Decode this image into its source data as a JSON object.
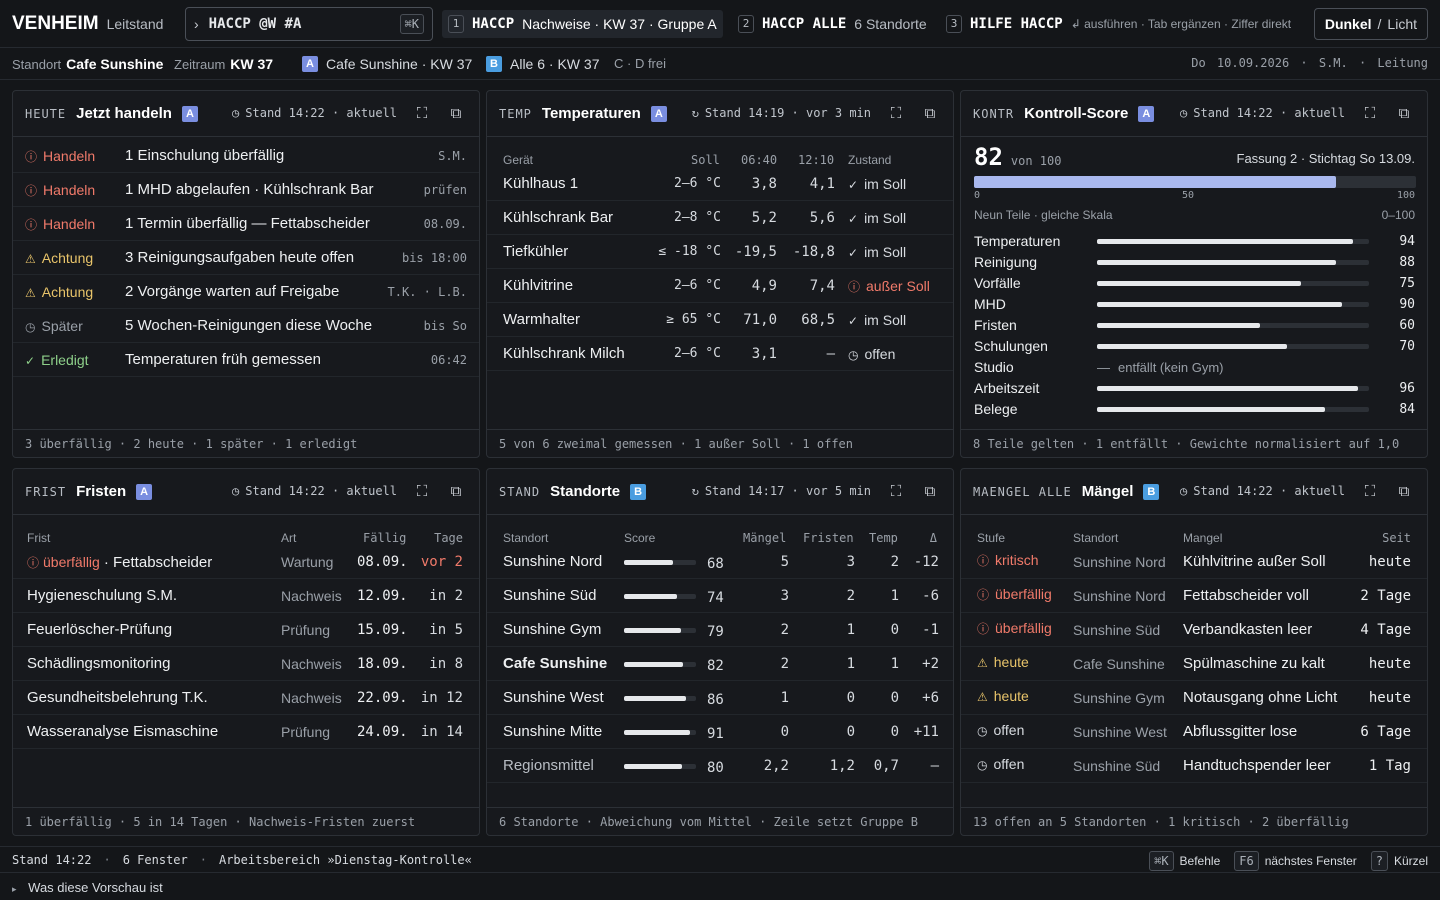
{
  "topbar": {
    "brand": "VENHEIM",
    "brand_sub": "Leitstand",
    "command": "HACCP @W #A",
    "command_kbd": "⌘K",
    "suggestions": [
      {
        "num": "1",
        "key": "HACCP",
        "text": "Nachweise · KW 37 · Gruppe A"
      },
      {
        "num": "2",
        "key": "HACCP ALLE",
        "text": "6 Standorte"
      },
      {
        "num": "3",
        "key": "HILFE HACCP",
        "text": "↲ ausführen · Tab ergänzen · Ziffer direkt"
      }
    ],
    "theme_dark": "Dunkel",
    "theme_sep": "/",
    "theme_light": "Licht"
  },
  "context": {
    "standort_label": "Standort",
    "standort_value": "Cafe Sunshine",
    "zeitraum_label": "Zeitraum",
    "zeitraum_value": "KW 37",
    "group_a_badge": "A",
    "group_a_text": "Cafe Sunshine · KW 37",
    "group_b_badge": "B",
    "group_b_text": "Alle 6 · KW 37",
    "free_text": "C · D frei",
    "date_user": "Do 10.09.2026 · S.M. · Leitung"
  },
  "panels": {
    "heute": {
      "tag": "HEUTE",
      "title": "Jetzt handeln",
      "badge": "A",
      "stand": "Stand 14:22 · aktuell",
      "rows": [
        {
          "status": "Handeln",
          "level": "red",
          "icon": "alert-circle-icon",
          "text": "1 Einschulung überfällig",
          "meta": "S.M."
        },
        {
          "status": "Handeln",
          "level": "red",
          "icon": "alert-circle-icon",
          "text": "1 MHD abgelaufen · Kühlschrank Bar",
          "meta": "prüfen"
        },
        {
          "status": "Handeln",
          "level": "red",
          "icon": "alert-circle-icon",
          "text": "1 Termin überfällig — Fettabscheider",
          "meta": "08.09."
        },
        {
          "status": "Achtung",
          "level": "yel",
          "icon": "warning-triangle-icon",
          "text": "3 Reinigungsaufgaben heute offen",
          "meta": "bis 18:00"
        },
        {
          "status": "Achtung",
          "level": "yel",
          "icon": "warning-triangle-icon",
          "text": "2 Vorgänge warten auf Freigabe",
          "meta": "T.K. · L.B."
        },
        {
          "status": "Später",
          "level": "muted",
          "icon": "clock-icon",
          "text": "5 Wochen-Reinigungen diese Woche",
          "meta": "bis So"
        },
        {
          "status": "Erledigt",
          "level": "grn",
          "icon": "check-circle-icon",
          "text": "Temperaturen früh gemessen",
          "meta": "06:42"
        }
      ],
      "footer": "3 überfällig · 2 heute · 1 später · 1 erledigt"
    },
    "temp": {
      "tag": "TEMP",
      "title": "Temperaturen",
      "badge": "A",
      "stand": "Stand 14:19 · vor 3 min",
      "headers": [
        "Gerät",
        "Soll",
        "06:40",
        "12:10",
        "Zustand"
      ],
      "rows": [
        {
          "device": "Kühlhaus 1",
          "soll": "2–6 °C",
          "t1": "3,8",
          "t2": "4,1",
          "state": "im Soll",
          "level": "ok",
          "icon": "check-icon"
        },
        {
          "device": "Kühlschrank Bar",
          "soll": "2–8 °C",
          "t1": "5,2",
          "t2": "5,6",
          "state": "im Soll",
          "level": "ok",
          "icon": "check-icon"
        },
        {
          "device": "Tiefkühler",
          "soll": "≤ -18 °C",
          "t1": "-19,5",
          "t2": "-18,8",
          "state": "im Soll",
          "level": "ok",
          "icon": "check-icon"
        },
        {
          "device": "Kühlvitrine",
          "soll": "2–6 °C",
          "t1": "4,9",
          "t2": "7,4",
          "state": "außer Soll",
          "level": "red",
          "icon": "alert-circle-icon"
        },
        {
          "device": "Warmhalter",
          "soll": "≥ 65 °C",
          "t1": "71,0",
          "t2": "68,5",
          "state": "im Soll",
          "level": "ok",
          "icon": "check-icon"
        },
        {
          "device": "Kühlschrank Milch",
          "soll": "2–6 °C",
          "t1": "3,1",
          "t2": "—",
          "state": "offen",
          "level": "ok",
          "icon": "clock-icon"
        }
      ],
      "footer": "5 von 6 zweimal gemessen · 1 außer Soll · 1 offen"
    },
    "kontr": {
      "tag": "KONTR",
      "title": "Kontroll-Score",
      "badge": "A",
      "stand": "Stand 14:22 · aktuell",
      "score": "82",
      "score_of": "von 100",
      "fassung": "Fassung 2 · Stichtag So 13.09.",
      "score_fraction": 0.82,
      "scale_ticks": [
        "0",
        "50",
        "100"
      ],
      "subhead": "Neun Teile · gleiche Skala",
      "subhead_range": "0–100",
      "items": [
        {
          "label": "Temperaturen",
          "value": 94
        },
        {
          "label": "Reinigung",
          "value": 88
        },
        {
          "label": "Vorfälle",
          "value": 75
        },
        {
          "label": "MHD",
          "value": 90
        },
        {
          "label": "Fristen",
          "value": 60
        },
        {
          "label": "Schulungen",
          "value": 70
        },
        {
          "label": "Studio",
          "value": null,
          "note": "entfällt (kein Gym)"
        },
        {
          "label": "Arbeitszeit",
          "value": 96
        },
        {
          "label": "Belege",
          "value": 84
        }
      ],
      "footer": "8 Teile gelten · 1 entfällt · Gewichte normalisiert auf 1,0"
    },
    "frist": {
      "tag": "FRIST",
      "title": "Fristen",
      "badge": "A",
      "stand": "Stand 14:22 · aktuell",
      "headers": [
        "Frist",
        "Art",
        "Fällig",
        "Tage"
      ],
      "rows": [
        {
          "prefix": "überfällig",
          "name": "· Fettabscheider",
          "art": "Wartung",
          "due": "08.09.",
          "days": "vor 2",
          "overdue": true
        },
        {
          "prefix": "",
          "name": "Hygieneschulung S.M.",
          "art": "Nachweis",
          "due": "12.09.",
          "days": "in 2",
          "overdue": false
        },
        {
          "prefix": "",
          "name": "Feuerlöscher-Prüfung",
          "art": "Prüfung",
          "due": "15.09.",
          "days": "in 5",
          "overdue": false
        },
        {
          "prefix": "",
          "name": "Schädlingsmonitoring",
          "art": "Nachweis",
          "due": "18.09.",
          "days": "in 8",
          "overdue": false
        },
        {
          "prefix": "",
          "name": "Gesundheitsbelehrung T.K.",
          "art": "Nachweis",
          "due": "22.09.",
          "days": "in 12",
          "overdue": false
        },
        {
          "prefix": "",
          "name": "Wasseranalyse Eismaschine",
          "art": "Prüfung",
          "due": "24.09.",
          "days": "in 14",
          "overdue": false
        }
      ],
      "footer": "1 überfällig · 5 in 14 Tagen · Nachweis-Fristen zuerst"
    },
    "stand": {
      "tag": "STAND",
      "title": "Standorte",
      "badge": "B",
      "stand": "Stand 14:17 · vor 5 min",
      "headers": [
        "Standort",
        "Score",
        "Mängel",
        "Fristen",
        "Temp",
        "Δ"
      ],
      "rows": [
        {
          "name": "Sunshine Nord",
          "score": 68,
          "score_text": "68",
          "maengel": "5",
          "fristen": "3",
          "temp": "2",
          "delta": "-12"
        },
        {
          "name": "Sunshine Süd",
          "score": 74,
          "score_text": "74",
          "maengel": "3",
          "fristen": "2",
          "temp": "1",
          "delta": "-6"
        },
        {
          "name": "Sunshine Gym",
          "score": 79,
          "score_text": "79",
          "maengel": "2",
          "fristen": "1",
          "temp": "0",
          "delta": "-1"
        },
        {
          "name": "Cafe Sunshine",
          "score": 82,
          "score_text": "82",
          "maengel": "2",
          "fristen": "1",
          "temp": "1",
          "delta": "+2",
          "bold": true
        },
        {
          "name": "Sunshine West",
          "score": 86,
          "score_text": "86",
          "maengel": "1",
          "fristen": "0",
          "temp": "0",
          "delta": "+6"
        },
        {
          "name": "Sunshine Mitte",
          "score": 91,
          "score_text": "91",
          "maengel": "0",
          "fristen": "0",
          "temp": "0",
          "delta": "+11"
        },
        {
          "name": "Regionsmittel",
          "score": 80,
          "score_text": "80",
          "maengel": "2,2",
          "fristen": "1,2",
          "temp": "0,7",
          "delta": "—",
          "muted": true
        }
      ],
      "footer": "6 Standorte · Abweichung vom Mittel · Zeile setzt Gruppe B"
    },
    "maengel": {
      "tag": "MAENGEL ALLE",
      "title": "Mängel",
      "badge": "B",
      "stand": "Stand 14:22 · aktuell",
      "headers": [
        "Stufe",
        "Standort",
        "Mangel",
        "Seit"
      ],
      "rows": [
        {
          "level": "kritisch",
          "cls": "red",
          "icon": "alert-circle-icon",
          "site": "Sunshine Nord",
          "issue": "Kühlvitrine außer Soll",
          "since": "heute"
        },
        {
          "level": "überfällig",
          "cls": "red",
          "icon": "alert-circle-icon",
          "site": "Sunshine Nord",
          "issue": "Fettabscheider voll",
          "since": "2 Tage"
        },
        {
          "level": "überfällig",
          "cls": "red",
          "icon": "alert-circle-icon",
          "site": "Sunshine Süd",
          "issue": "Verbandkasten leer",
          "since": "4 Tage"
        },
        {
          "level": "heute",
          "cls": "yel",
          "icon": "warning-triangle-icon",
          "site": "Cafe Sunshine",
          "issue": "Spülmaschine zu kalt",
          "since": "heute"
        },
        {
          "level": "heute",
          "cls": "yel",
          "icon": "warning-triangle-icon",
          "site": "Sunshine Gym",
          "issue": "Notausgang ohne Licht",
          "since": "heute"
        },
        {
          "level": "offen",
          "cls": "ok",
          "icon": "clock-icon",
          "site": "Sunshine West",
          "issue": "Abflussgitter lose",
          "since": "6 Tage"
        },
        {
          "level": "offen",
          "cls": "ok",
          "icon": "clock-icon",
          "site": "Sunshine Süd",
          "issue": "Handtuchspender leer",
          "since": "1 Tag"
        }
      ],
      "footer": "13 offen an 5 Standorten · 1 kritisch · 2 überfällig"
    }
  },
  "statusbar": {
    "stand": "Stand 14:22",
    "windows": "6 Fenster",
    "workspace": "Arbeitsbereich »Dienstag-Kontrolle«",
    "k1": "⌘K",
    "l1": "Befehle",
    "k2": "F6",
    "l2": "nächstes Fenster",
    "k3": "?",
    "l3": "Kürzel"
  },
  "preview": {
    "label": "Was diese Vorschau ist"
  },
  "colors": {
    "accent": "#7a8ee0",
    "badge_b": "#4a9de0",
    "red": "#f07a6a",
    "yellow": "#e8c46a",
    "green": "#8ed08a",
    "score_bar": "#a9b8ee"
  }
}
